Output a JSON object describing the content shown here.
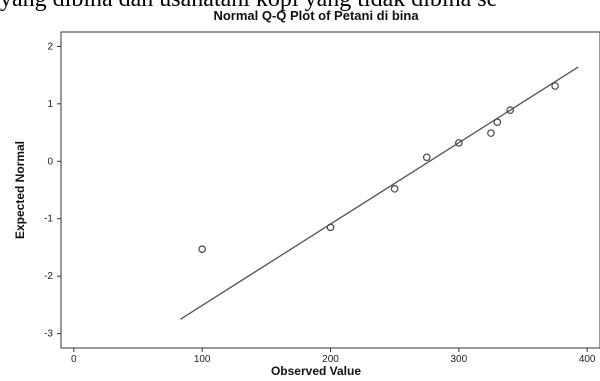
{
  "page_text": {
    "header_line": "yang dibina dan usahatani kopi yang tidak dibina se"
  },
  "chart_data": {
    "type": "scatter",
    "title": "Normal Q-Q Plot of Petani di bina",
    "xlabel": "Observed Value",
    "ylabel": "Expected Normal",
    "xlim": [
      -10,
      410
    ],
    "ylim": [
      -3.25,
      2.25
    ],
    "xticks": [
      0,
      100,
      200,
      300,
      400
    ],
    "yticks": [
      2,
      1,
      0,
      -1,
      -2,
      -3
    ],
    "grid": false,
    "points": [
      {
        "x": 100,
        "y": -1.53
      },
      {
        "x": 200,
        "y": -1.15
      },
      {
        "x": 250,
        "y": -0.48
      },
      {
        "x": 275,
        "y": 0.07
      },
      {
        "x": 300,
        "y": 0.32
      },
      {
        "x": 325,
        "y": 0.49
      },
      {
        "x": 330,
        "y": 0.68
      },
      {
        "x": 340,
        "y": 0.89
      },
      {
        "x": 375,
        "y": 1.31
      }
    ],
    "reference_line": {
      "x": [
        83,
        393
      ],
      "y": [
        -2.75,
        1.64
      ]
    },
    "colors": {
      "points": "#444444",
      "line": "#555555",
      "frame": "#333333"
    }
  }
}
